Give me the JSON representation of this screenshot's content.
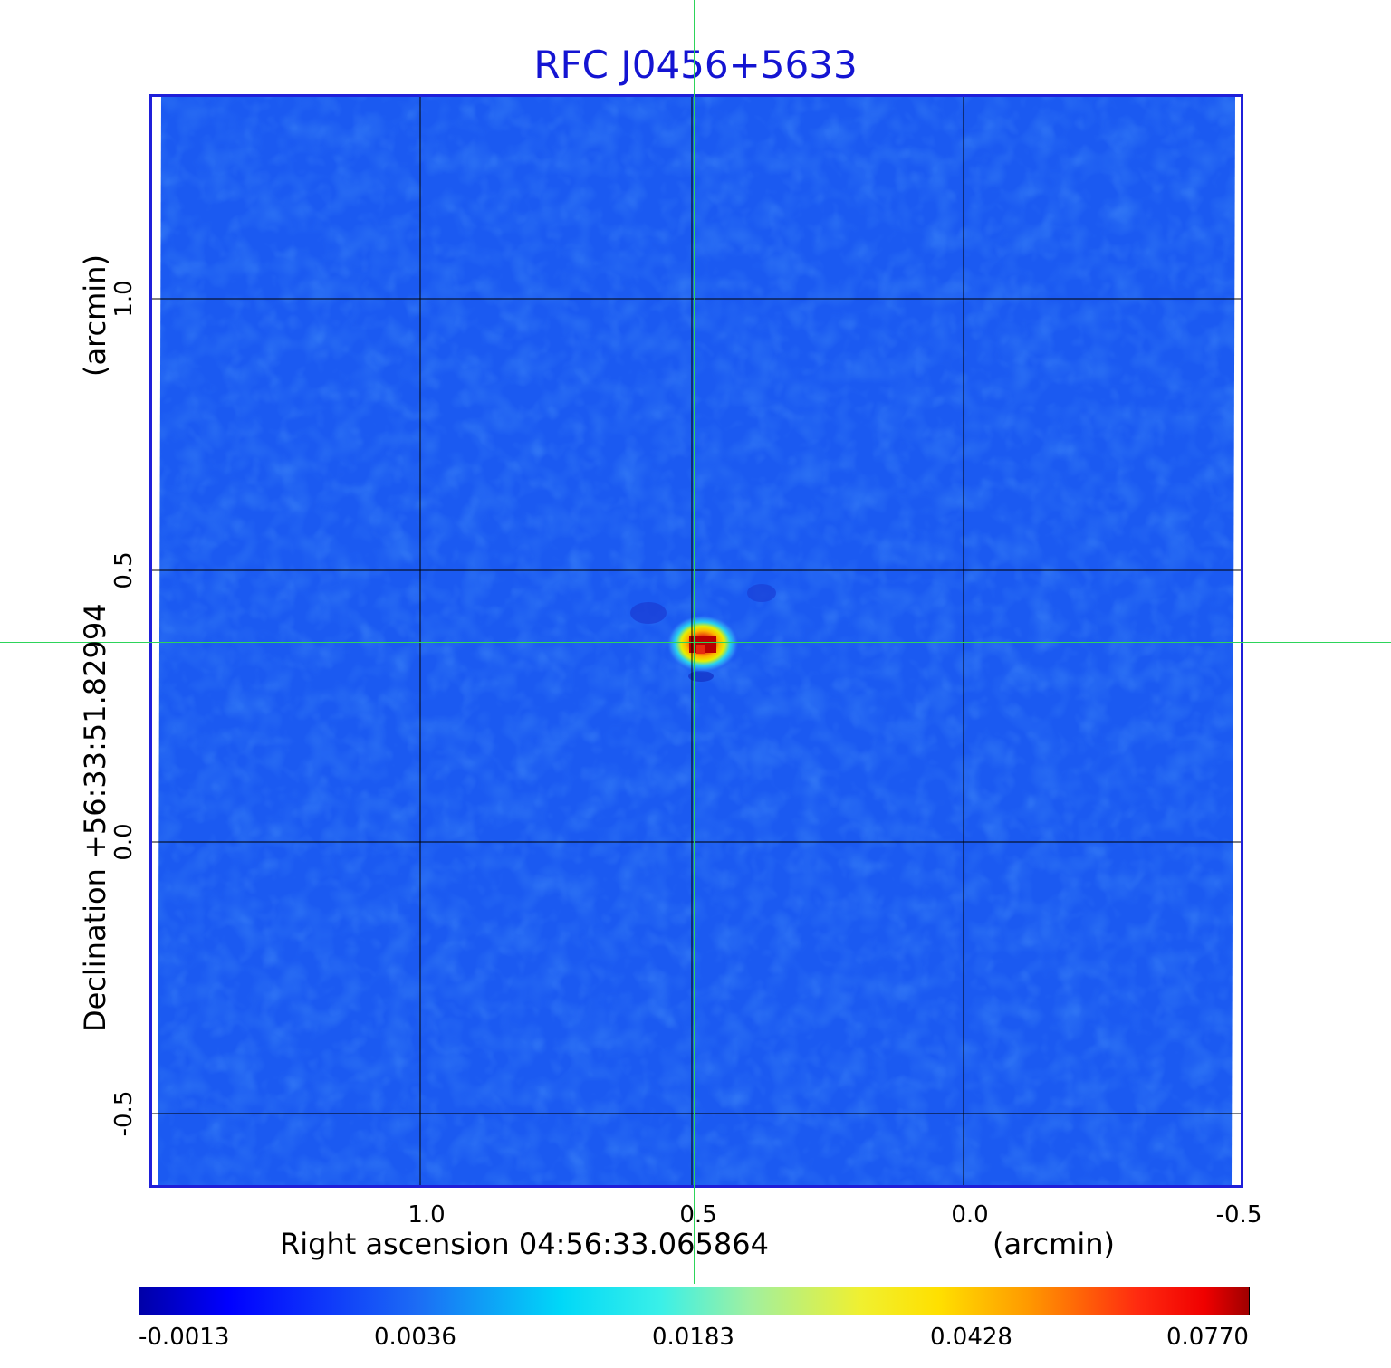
{
  "title": "RFC J0456+5633",
  "x_axis": {
    "label_left": "Right ascension  04:56:33.065864",
    "label_right": "(arcmin)",
    "ticks": [
      "1.0",
      "0.5",
      "0.0",
      "-0.5"
    ]
  },
  "y_axis": {
    "label_main": "Declination  +56:33:51.82994",
    "label_unit": "(arcmin)",
    "ticks": [
      "1.0",
      "0.5",
      "0.0",
      "-0.5"
    ]
  },
  "colorbar": {
    "ticks": [
      "-0.0013",
      "0.0036",
      "0.0183",
      "0.0428",
      "0.0770"
    ]
  },
  "colors": {
    "title": "#1414d2",
    "frame": "#1f1fd9",
    "background_map": "#1c5cf2",
    "crosshair": "#2dd45a"
  }
}
